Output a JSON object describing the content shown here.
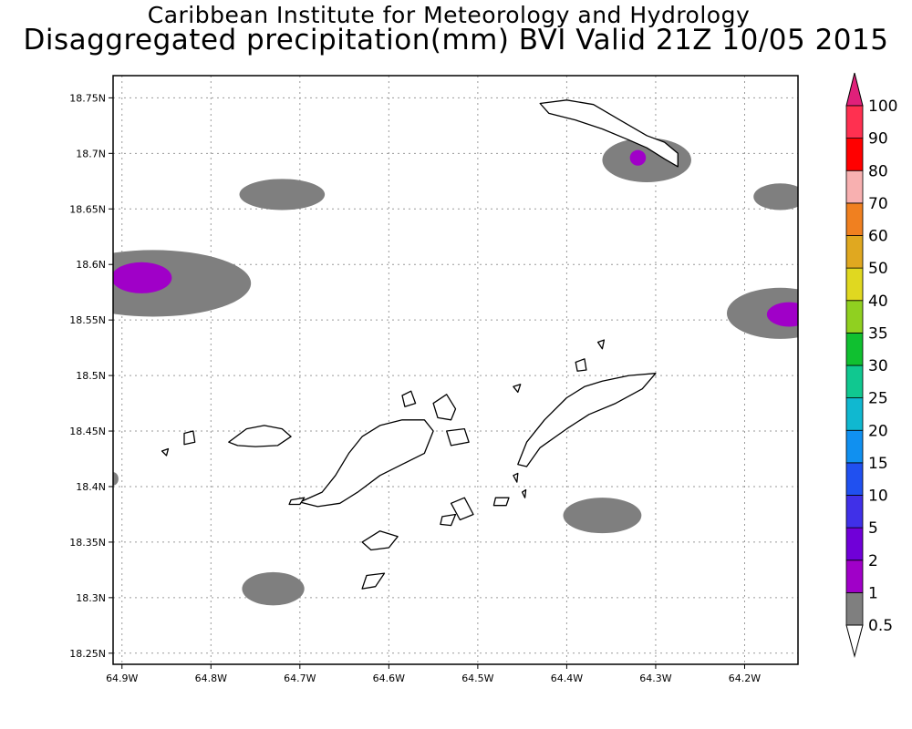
{
  "header": {
    "institute": "Caribbean Institute for Meteorology and Hydrology",
    "product": "Disaggregated precipitation(mm) BVI Valid 21Z 10/05 2015"
  },
  "map": {
    "lon_range": [
      -64.91,
      -64.14
    ],
    "lat_range": [
      18.24,
      18.77
    ],
    "grid": true,
    "lon_ticks": [
      {
        "value": -64.9,
        "label": "64.9W"
      },
      {
        "value": -64.8,
        "label": "64.8W"
      },
      {
        "value": -64.7,
        "label": "64.7W"
      },
      {
        "value": -64.6,
        "label": "64.6W"
      },
      {
        "value": -64.5,
        "label": "64.5W"
      },
      {
        "value": -64.4,
        "label": "64.4W"
      },
      {
        "value": -64.3,
        "label": "64.3W"
      },
      {
        "value": -64.2,
        "label": "64.2W"
      }
    ],
    "lat_ticks": [
      {
        "value": 18.75,
        "label": "18.75N"
      },
      {
        "value": 18.7,
        "label": "18.7N"
      },
      {
        "value": 18.65,
        "label": "18.65N"
      },
      {
        "value": 18.6,
        "label": "18.6N"
      },
      {
        "value": 18.55,
        "label": "18.55N"
      },
      {
        "value": 18.5,
        "label": "18.5N"
      },
      {
        "value": 18.45,
        "label": "18.45N"
      },
      {
        "value": 18.4,
        "label": "18.4N"
      },
      {
        "value": 18.35,
        "label": "18.35N"
      },
      {
        "value": 18.3,
        "label": "18.3N"
      },
      {
        "value": 18.25,
        "label": "18.25N"
      }
    ],
    "precip_areas": [
      {
        "name": "precip-area-northwest",
        "lon": -64.865,
        "lat": 18.583,
        "rlon": 0.11,
        "rlat": 0.03,
        "category": "1-2"
      },
      {
        "name": "precip-core-northwest",
        "lon": -64.878,
        "lat": 18.588,
        "rlon": 0.034,
        "rlat": 0.014,
        "category": "2-5"
      },
      {
        "name": "precip-area-north",
        "lon": -64.72,
        "lat": 18.663,
        "rlon": 0.048,
        "rlat": 0.014,
        "category": "1-2"
      },
      {
        "name": "precip-area-anegada",
        "lon": -64.31,
        "lat": 18.694,
        "rlon": 0.05,
        "rlat": 0.02,
        "category": "1-2"
      },
      {
        "name": "precip-core-anegada",
        "lon": -64.32,
        "lat": 18.696,
        "rlon": 0.009,
        "rlat": 0.007,
        "category": "2-5"
      },
      {
        "name": "precip-area-east-north",
        "lon": -64.16,
        "lat": 18.661,
        "rlon": 0.03,
        "rlat": 0.012,
        "category": "1-2"
      },
      {
        "name": "precip-area-east",
        "lon": -64.16,
        "lat": 18.556,
        "rlon": 0.06,
        "rlat": 0.023,
        "category": "1-2"
      },
      {
        "name": "precip-core-east",
        "lon": -64.15,
        "lat": 18.555,
        "rlon": 0.025,
        "rlat": 0.011,
        "category": "2-5"
      },
      {
        "name": "precip-area-south",
        "lon": -64.36,
        "lat": 18.374,
        "rlon": 0.044,
        "rlat": 0.016,
        "category": "1-2"
      },
      {
        "name": "precip-area-southwest",
        "lon": -64.73,
        "lat": 18.308,
        "rlon": 0.035,
        "rlat": 0.015,
        "category": "1-2"
      },
      {
        "name": "precip-area-west-edge",
        "lon": -64.91,
        "lat": 18.407,
        "rlon": 0.006,
        "rlat": 0.006,
        "category": "1-2"
      }
    ],
    "islands": [
      {
        "name": "island-anegada",
        "coords": [
          [
            -64.43,
            18.745
          ],
          [
            -64.4,
            18.748
          ],
          [
            -64.37,
            18.744
          ],
          [
            -64.34,
            18.73
          ],
          [
            -64.31,
            18.716
          ],
          [
            -64.29,
            18.71
          ],
          [
            -64.275,
            18.7
          ],
          [
            -64.275,
            18.688
          ],
          [
            -64.29,
            18.695
          ],
          [
            -64.31,
            18.705
          ],
          [
            -64.33,
            18.712
          ],
          [
            -64.36,
            18.722
          ],
          [
            -64.39,
            18.73
          ],
          [
            -64.42,
            18.736
          ]
        ]
      },
      {
        "name": "island-tortola",
        "coords": [
          [
            -64.7,
            18.386
          ],
          [
            -64.675,
            18.395
          ],
          [
            -64.66,
            18.41
          ],
          [
            -64.645,
            18.43
          ],
          [
            -64.63,
            18.445
          ],
          [
            -64.61,
            18.455
          ],
          [
            -64.585,
            18.46
          ],
          [
            -64.56,
            18.46
          ],
          [
            -64.55,
            18.45
          ],
          [
            -64.56,
            18.43
          ],
          [
            -64.585,
            18.42
          ],
          [
            -64.61,
            18.41
          ],
          [
            -64.635,
            18.395
          ],
          [
            -64.655,
            18.385
          ],
          [
            -64.68,
            18.382
          ]
        ]
      },
      {
        "name": "island-jost-van-dyke",
        "coords": [
          [
            -64.78,
            18.44
          ],
          [
            -64.76,
            18.452
          ],
          [
            -64.74,
            18.455
          ],
          [
            -64.72,
            18.452
          ],
          [
            -64.71,
            18.445
          ],
          [
            -64.725,
            18.437
          ],
          [
            -64.75,
            18.436
          ],
          [
            -64.77,
            18.437
          ]
        ]
      },
      {
        "name": "island-guana",
        "coords": [
          [
            -64.55,
            18.475
          ],
          [
            -64.535,
            18.483
          ],
          [
            -64.525,
            18.47
          ],
          [
            -64.53,
            18.46
          ],
          [
            -64.545,
            18.462
          ]
        ]
      },
      {
        "name": "island-great-camanoe",
        "coords": [
          [
            -64.535,
            18.45
          ],
          [
            -64.515,
            18.452
          ],
          [
            -64.51,
            18.44
          ],
          [
            -64.53,
            18.437
          ]
        ]
      },
      {
        "name": "island-virgin-gorda",
        "coords": [
          [
            -64.455,
            18.42
          ],
          [
            -64.445,
            18.44
          ],
          [
            -64.425,
            18.46
          ],
          [
            -64.4,
            18.48
          ],
          [
            -64.38,
            18.49
          ],
          [
            -64.36,
            18.495
          ],
          [
            -64.33,
            18.5
          ],
          [
            -64.3,
            18.502
          ],
          [
            -64.315,
            18.488
          ],
          [
            -64.345,
            18.475
          ],
          [
            -64.375,
            18.465
          ],
          [
            -64.4,
            18.452
          ],
          [
            -64.43,
            18.435
          ],
          [
            -64.445,
            18.418
          ]
        ]
      },
      {
        "name": "island-norman",
        "coords": [
          [
            -64.63,
            18.35
          ],
          [
            -64.61,
            18.36
          ],
          [
            -64.59,
            18.355
          ],
          [
            -64.6,
            18.345
          ],
          [
            -64.62,
            18.343
          ]
        ]
      },
      {
        "name": "island-peter",
        "coords": [
          [
            -64.625,
            18.32
          ],
          [
            -64.605,
            18.322
          ],
          [
            -64.615,
            18.31
          ],
          [
            -64.63,
            18.308
          ]
        ]
      },
      {
        "name": "island-cooper",
        "coords": [
          [
            -64.53,
            18.385
          ],
          [
            -64.515,
            18.39
          ],
          [
            -64.505,
            18.375
          ],
          [
            -64.52,
            18.37
          ]
        ]
      },
      {
        "name": "island-ginger",
        "coords": [
          [
            -64.48,
            18.39
          ],
          [
            -64.465,
            18.39
          ],
          [
            -64.468,
            18.383
          ],
          [
            -64.482,
            18.383
          ]
        ]
      },
      {
        "name": "island-salt",
        "coords": [
          [
            -64.54,
            18.373
          ],
          [
            -64.525,
            18.375
          ],
          [
            -64.53,
            18.365
          ],
          [
            -64.542,
            18.366
          ]
        ]
      },
      {
        "name": "island-little-thatch",
        "coords": [
          [
            -64.71,
            18.388
          ],
          [
            -64.695,
            18.39
          ],
          [
            -64.7,
            18.384
          ],
          [
            -64.712,
            18.384
          ]
        ]
      },
      {
        "name": "island-sandy-cay",
        "coords": [
          [
            -64.855,
            18.432
          ],
          [
            -64.848,
            18.434
          ],
          [
            -64.85,
            18.428
          ]
        ]
      },
      {
        "name": "island-west-cay",
        "coords": [
          [
            -64.83,
            18.448
          ],
          [
            -64.82,
            18.45
          ],
          [
            -64.818,
            18.44
          ],
          [
            -64.83,
            18.438
          ]
        ]
      },
      {
        "name": "island-beef-north",
        "coords": [
          [
            -64.585,
            18.482
          ],
          [
            -64.575,
            18.486
          ],
          [
            -64.57,
            18.475
          ],
          [
            -64.582,
            18.472
          ]
        ]
      },
      {
        "name": "island-necker",
        "coords": [
          [
            -64.365,
            18.53
          ],
          [
            -64.358,
            18.532
          ],
          [
            -64.36,
            18.524
          ]
        ]
      },
      {
        "name": "island-mosquito",
        "coords": [
          [
            -64.39,
            18.512
          ],
          [
            -64.38,
            18.515
          ],
          [
            -64.378,
            18.505
          ],
          [
            -64.388,
            18.504
          ]
        ]
      },
      {
        "name": "island-cay-east",
        "coords": [
          [
            -64.46,
            18.49
          ],
          [
            -64.452,
            18.492
          ],
          [
            -64.455,
            18.485
          ]
        ]
      },
      {
        "name": "island-fallen-jerusalem",
        "coords": [
          [
            -64.46,
            18.41
          ],
          [
            -64.455,
            18.412
          ],
          [
            -64.456,
            18.404
          ]
        ]
      },
      {
        "name": "island-round-rock",
        "coords": [
          [
            -64.45,
            18.395
          ],
          [
            -64.446,
            18.397
          ],
          [
            -64.447,
            18.39
          ]
        ]
      }
    ]
  },
  "colorbar": {
    "levels": [
      "0.5",
      "1",
      "2",
      "5",
      "10",
      "15",
      "20",
      "25",
      "30",
      "35",
      "40",
      "50",
      "60",
      "70",
      "80",
      "90",
      "100"
    ],
    "colors": [
      "#7f7f7f",
      "#a000c8",
      "#7000d8",
      "#4030e8",
      "#2050f0",
      "#1090f0",
      "#10b8d0",
      "#10c890",
      "#10c030",
      "#90d020",
      "#e0d820",
      "#e0a820",
      "#f08020",
      "#f8b0b0",
      "#ff0000",
      "#ff3050"
    ],
    "top_color": "#e0207a",
    "bottom_color": "#ffffff"
  }
}
